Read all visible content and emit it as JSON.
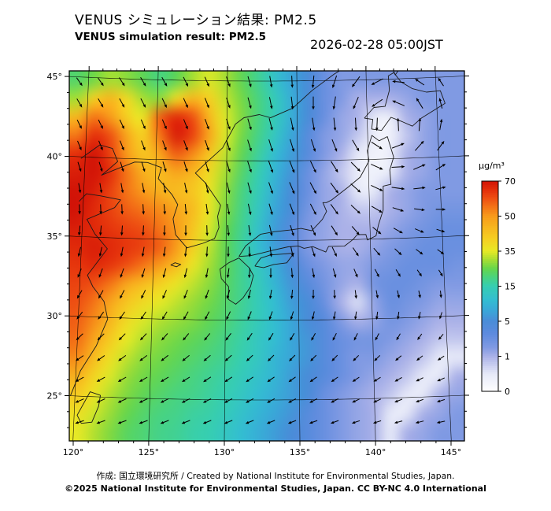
{
  "header": {
    "title_ja": "VENUS シミュレーション結果: PM2.5",
    "title_en": "VENUS simulation result: PM2.5",
    "timestamp": "2026-02-28 05:00JST"
  },
  "footer": {
    "credit_line": "作成: 国立環境研究所 / Created by National Institute for Environmental Studies, Japan.",
    "license_line": "©2025 National Institute for Environmental Studies, Japan. CC BY-NC 4.0 International"
  },
  "chart_data": {
    "type": "heatmap",
    "title": "VENUS simulation result: PM2.5",
    "variable": "PM2.5",
    "units": "μg/m³",
    "timestamp": "2026-02-28 05:00JST",
    "lon_range": [
      119.75,
      145.9
    ],
    "lat_range": [
      22.43,
      45.64
    ],
    "lon_ticks": [
      120,
      125,
      130,
      135,
      140,
      145
    ],
    "lon_tick_labels": [
      "120°",
      "125°",
      "130°",
      "135°",
      "140°",
      "145°"
    ],
    "lat_ticks": [
      25,
      30,
      35,
      40,
      45
    ],
    "lat_tick_labels": [
      "25°",
      "30°",
      "35°",
      "40°",
      "45°"
    ],
    "colorbar": {
      "title": "μg/m³",
      "tick_values": [
        0,
        1,
        5,
        15,
        35,
        50,
        70
      ],
      "tick_labels": [
        "0",
        "1",
        "5",
        "15",
        "35",
        "50",
        "70"
      ]
    },
    "colormap": [
      [
        0,
        "#ffffff"
      ],
      [
        0.5,
        "#e6e9f8"
      ],
      [
        1,
        "#aab1e8"
      ],
      [
        2,
        "#809ae3"
      ],
      [
        3.5,
        "#5f8bde"
      ],
      [
        5,
        "#4a8cd8"
      ],
      [
        8,
        "#3aa6d8"
      ],
      [
        11,
        "#33bdd2"
      ],
      [
        15,
        "#36ceb2"
      ],
      [
        20,
        "#49d380"
      ],
      [
        25,
        "#66d64c"
      ],
      [
        30,
        "#a6de33"
      ],
      [
        35,
        "#e7e926"
      ],
      [
        40,
        "#f5d022"
      ],
      [
        45,
        "#f7b71f"
      ],
      [
        50,
        "#f89b1b"
      ],
      [
        55,
        "#f47517"
      ],
      [
        60,
        "#ee5013"
      ],
      [
        65,
        "#e42f0b"
      ],
      [
        70,
        "#d21407"
      ]
    ],
    "grid": {
      "ncols": 24,
      "nrows": 20,
      "order": "north_to_south",
      "values": [
        [
          22,
          26,
          30,
          28,
          24,
          20,
          24,
          30,
          34,
          30,
          24,
          18,
          12,
          8,
          5,
          3,
          2,
          2,
          2,
          2,
          2,
          2,
          2,
          2
        ],
        [
          30,
          40,
          45,
          38,
          30,
          28,
          38,
          45,
          40,
          32,
          26,
          20,
          14,
          9,
          5,
          3,
          2,
          1,
          1,
          1,
          1.5,
          2,
          2,
          2
        ],
        [
          45,
          55,
          50,
          40,
          36,
          58,
          66,
          60,
          45,
          34,
          27,
          20,
          14,
          9,
          5,
          3,
          1.5,
          1,
          0.5,
          0.4,
          1,
          1.5,
          2,
          2
        ],
        [
          55,
          65,
          60,
          48,
          40,
          55,
          68,
          62,
          48,
          34,
          26,
          19,
          13,
          8,
          4,
          2,
          1.5,
          0.8,
          0.4,
          0.3,
          0.8,
          1.5,
          2,
          2
        ],
        [
          65,
          70,
          62,
          50,
          42,
          48,
          58,
          52,
          42,
          32,
          24,
          17,
          11,
          7,
          4,
          2,
          1,
          0.5,
          0.3,
          0.4,
          1,
          1.5,
          2,
          2
        ],
        [
          68,
          70,
          65,
          55,
          46,
          44,
          48,
          45,
          38,
          30,
          22,
          15,
          10,
          6,
          3,
          1.5,
          0.8,
          0.4,
          0.3,
          0.5,
          1,
          1.5,
          2,
          2
        ],
        [
          70,
          68,
          62,
          55,
          50,
          46,
          44,
          42,
          36,
          28,
          20,
          14,
          9,
          5,
          3,
          1.5,
          1,
          0.5,
          0.5,
          1,
          1.5,
          2,
          2,
          2
        ],
        [
          70,
          66,
          62,
          58,
          55,
          52,
          48,
          44,
          36,
          27,
          19,
          13,
          8,
          5,
          2.5,
          1.5,
          1,
          0.8,
          0.8,
          1,
          1.5,
          2,
          2.5,
          2.5
        ],
        [
          68,
          66,
          64,
          62,
          60,
          55,
          50,
          42,
          34,
          25,
          18,
          12,
          7,
          4,
          2,
          1.5,
          1,
          1,
          1,
          1.5,
          2,
          2.5,
          3,
          3
        ],
        [
          66,
          68,
          66,
          64,
          62,
          58,
          50,
          40,
          32,
          24,
          17,
          11,
          7,
          4,
          2,
          1.5,
          1,
          1,
          1.5,
          2,
          2.5,
          3,
          3,
          3
        ],
        [
          64,
          66,
          64,
          60,
          55,
          50,
          44,
          36,
          30,
          24,
          18,
          13,
          9,
          5,
          3,
          2,
          1.5,
          1.5,
          2,
          2.5,
          3,
          3,
          3,
          2.5
        ],
        [
          62,
          60,
          55,
          48,
          44,
          40,
          36,
          32,
          28,
          23,
          18,
          14,
          10,
          6,
          4,
          2.5,
          1.5,
          1,
          2.5,
          3,
          3,
          2.5,
          2,
          2
        ],
        [
          60,
          55,
          48,
          42,
          38,
          35,
          32,
          29,
          26,
          22,
          18,
          14,
          11,
          7,
          5,
          3,
          1,
          0.6,
          1.5,
          3,
          2.5,
          2,
          1.5,
          1.5
        ],
        [
          58,
          52,
          45,
          38,
          34,
          31,
          29,
          27,
          24,
          21,
          17,
          14,
          11,
          8,
          5,
          4,
          2,
          1,
          1.5,
          2.5,
          2,
          1.5,
          1,
          1
        ],
        [
          56,
          48,
          41,
          35,
          31,
          28,
          26,
          24,
          22,
          19,
          16,
          13,
          11,
          8,
          6,
          4,
          3,
          2.5,
          2.5,
          2,
          1.5,
          1,
          0.8,
          0.8
        ],
        [
          52,
          44,
          37,
          32,
          28,
          26,
          24,
          22,
          20,
          18,
          15,
          13,
          10,
          8,
          6,
          4,
          3,
          2,
          2,
          1.5,
          1,
          0.8,
          0.5,
          0.5
        ],
        [
          46,
          39,
          34,
          29,
          26,
          24,
          22,
          20,
          18,
          16,
          14,
          12,
          10,
          7,
          5,
          4,
          3,
          2,
          1.5,
          1,
          0.8,
          0.5,
          0.5,
          1
        ],
        [
          41,
          36,
          31,
          27,
          24,
          22,
          20,
          19,
          17,
          15,
          13,
          11,
          9,
          7,
          5,
          3,
          2,
          1.5,
          1,
          0.8,
          0.5,
          0.5,
          1,
          1.5
        ],
        [
          37,
          33,
          29,
          25,
          22,
          20,
          19,
          17,
          16,
          14,
          12,
          10,
          8,
          6,
          4,
          3,
          2,
          1.5,
          1,
          0.5,
          0.5,
          1,
          1.5,
          2
        ],
        [
          35,
          31,
          27,
          23,
          21,
          19,
          18,
          16,
          15,
          13,
          11,
          9,
          7,
          5,
          4,
          3,
          2,
          1.5,
          1,
          0.5,
          1,
          1.5,
          2,
          2
        ]
      ]
    },
    "wind": {
      "cyclone": {
        "lon": 140.8,
        "lat": 42.2,
        "amplitude": 2.6,
        "radius_deg": 6.5
      },
      "background_by_lat": [
        [
          22,
          -1.0,
          -0.12
        ],
        [
          27,
          -1.0,
          -0.4
        ],
        [
          32,
          -0.6,
          -0.8
        ],
        [
          36,
          -0.15,
          -1.0
        ],
        [
          40,
          0.4,
          -0.95
        ],
        [
          46,
          0.8,
          -0.7
        ]
      ]
    },
    "coastlines": [
      [
        [
          119.7,
          25.0
        ],
        [
          120.3,
          26.6
        ],
        [
          121.3,
          28.2
        ],
        [
          122.0,
          29.9
        ],
        [
          121.7,
          31.0
        ],
        [
          120.9,
          31.9
        ],
        [
          120.5,
          32.6
        ],
        [
          121.8,
          34.3
        ],
        [
          120.9,
          35.2
        ],
        [
          120.3,
          36.1
        ],
        [
          122.2,
          36.9
        ],
        [
          122.6,
          37.4
        ],
        [
          121.2,
          37.6
        ],
        [
          120.2,
          37.7
        ],
        [
          119.7,
          37.2
        ]
      ],
      [
        [
          119.7,
          39.9
        ],
        [
          121.0,
          40.8
        ],
        [
          121.9,
          40.6
        ],
        [
          122.3,
          39.8
        ],
        [
          121.7,
          39.3
        ],
        [
          121.2,
          38.9
        ],
        [
          122.2,
          39.3
        ],
        [
          123.5,
          39.8
        ],
        [
          124.4,
          39.8
        ]
      ],
      [
        [
          124.4,
          39.8
        ],
        [
          125.4,
          39.5
        ],
        [
          125.2,
          38.8
        ],
        [
          126.2,
          37.8
        ],
        [
          126.6,
          37.2
        ],
        [
          126.3,
          36.3
        ],
        [
          126.5,
          35.3
        ],
        [
          127.3,
          34.5
        ],
        [
          128.4,
          34.8
        ],
        [
          129.2,
          35.1
        ],
        [
          129.5,
          35.8
        ],
        [
          129.4,
          36.5
        ],
        [
          129.6,
          37.2
        ],
        [
          128.5,
          38.6
        ],
        [
          127.8,
          39.2
        ],
        [
          128.6,
          39.9
        ],
        [
          129.7,
          40.8
        ],
        [
          130.6,
          42.3
        ],
        [
          131.2,
          42.7
        ],
        [
          132.3,
          42.9
        ],
        [
          133.1,
          42.7
        ],
        [
          134.7,
          43.3
        ],
        [
          136.1,
          44.4
        ],
        [
          137.7,
          45.4
        ],
        [
          138.3,
          45.7
        ]
      ],
      [
        [
          130.2,
          33.6
        ],
        [
          129.6,
          33.2
        ],
        [
          129.7,
          32.6
        ],
        [
          130.2,
          32.1
        ],
        [
          130.2,
          31.3
        ],
        [
          130.7,
          31.0
        ],
        [
          131.2,
          31.4
        ],
        [
          131.7,
          32.1
        ],
        [
          131.9,
          32.8
        ],
        [
          131.6,
          33.3
        ],
        [
          130.9,
          33.9
        ],
        [
          130.2,
          33.6
        ]
      ],
      [
        [
          130.9,
          34.0
        ],
        [
          131.7,
          34.05
        ],
        [
          132.4,
          34.2
        ],
        [
          133.3,
          34.4
        ],
        [
          134.3,
          34.6
        ],
        [
          135.0,
          34.65
        ],
        [
          135.4,
          34.5
        ],
        [
          136.0,
          34.6
        ],
        [
          136.9,
          34.25
        ],
        [
          137.1,
          34.6
        ],
        [
          138.2,
          34.6
        ],
        [
          138.8,
          35.0
        ],
        [
          139.1,
          35.3
        ],
        [
          139.7,
          35.3
        ],
        [
          139.8,
          34.95
        ],
        [
          140.4,
          35.2
        ],
        [
          140.6,
          35.9
        ],
        [
          140.95,
          36.8
        ],
        [
          141.0,
          38.3
        ],
        [
          141.55,
          38.4
        ],
        [
          141.5,
          39.3
        ],
        [
          141.8,
          40.1
        ],
        [
          141.4,
          41.4
        ],
        [
          140.8,
          41.15
        ],
        [
          140.3,
          41.5
        ],
        [
          139.95,
          40.55
        ],
        [
          140.05,
          39.9
        ],
        [
          139.4,
          38.9
        ],
        [
          138.55,
          38.3
        ],
        [
          137.35,
          37.5
        ],
        [
          137.0,
          37.35
        ],
        [
          136.75,
          37.35
        ],
        [
          137.0,
          36.8
        ],
        [
          136.7,
          36.3
        ],
        [
          135.95,
          35.6
        ],
        [
          135.2,
          35.75
        ],
        [
          134.4,
          35.65
        ],
        [
          133.35,
          35.55
        ],
        [
          132.4,
          35.4
        ],
        [
          131.35,
          34.65
        ],
        [
          130.9,
          34.0
        ]
      ],
      [
        [
          132.0,
          33.4
        ],
        [
          132.6,
          33.3
        ],
        [
          133.3,
          33.5
        ],
        [
          134.2,
          33.6
        ],
        [
          134.7,
          34.2
        ],
        [
          134.0,
          34.15
        ],
        [
          133.1,
          34.1
        ],
        [
          132.4,
          33.9
        ],
        [
          132.0,
          33.4
        ]
      ],
      [
        [
          139.8,
          42.6
        ],
        [
          140.4,
          42.5
        ],
        [
          140.3,
          41.9
        ],
        [
          141.0,
          41.8
        ],
        [
          141.7,
          42.6
        ],
        [
          142.5,
          42.3
        ],
        [
          143.2,
          42.0
        ],
        [
          143.9,
          42.5
        ],
        [
          144.8,
          42.95
        ],
        [
          145.6,
          43.35
        ],
        [
          145.3,
          44.15
        ],
        [
          144.3,
          44.1
        ],
        [
          143.3,
          44.35
        ],
        [
          142.5,
          44.8
        ],
        [
          142.0,
          45.4
        ],
        [
          141.6,
          45.2
        ],
        [
          141.65,
          44.3
        ],
        [
          141.3,
          43.3
        ],
        [
          140.5,
          43.25
        ],
        [
          139.8,
          42.6
        ]
      ],
      [
        [
          141.9,
          45.7
        ],
        [
          142.1,
          45.25
        ],
        [
          142.5,
          45.7
        ]
      ],
      [
        [
          121.7,
          25.1
        ],
        [
          121.0,
          25.3
        ],
        [
          120.2,
          23.8
        ],
        [
          120.5,
          23.3
        ],
        [
          121.2,
          23.4
        ],
        [
          121.6,
          24.4
        ],
        [
          121.7,
          25.1
        ]
      ],
      [
        [
          126.2,
          33.4
        ],
        [
          126.6,
          33.3
        ],
        [
          126.9,
          33.45
        ],
        [
          126.5,
          33.55
        ],
        [
          126.2,
          33.4
        ]
      ]
    ]
  }
}
